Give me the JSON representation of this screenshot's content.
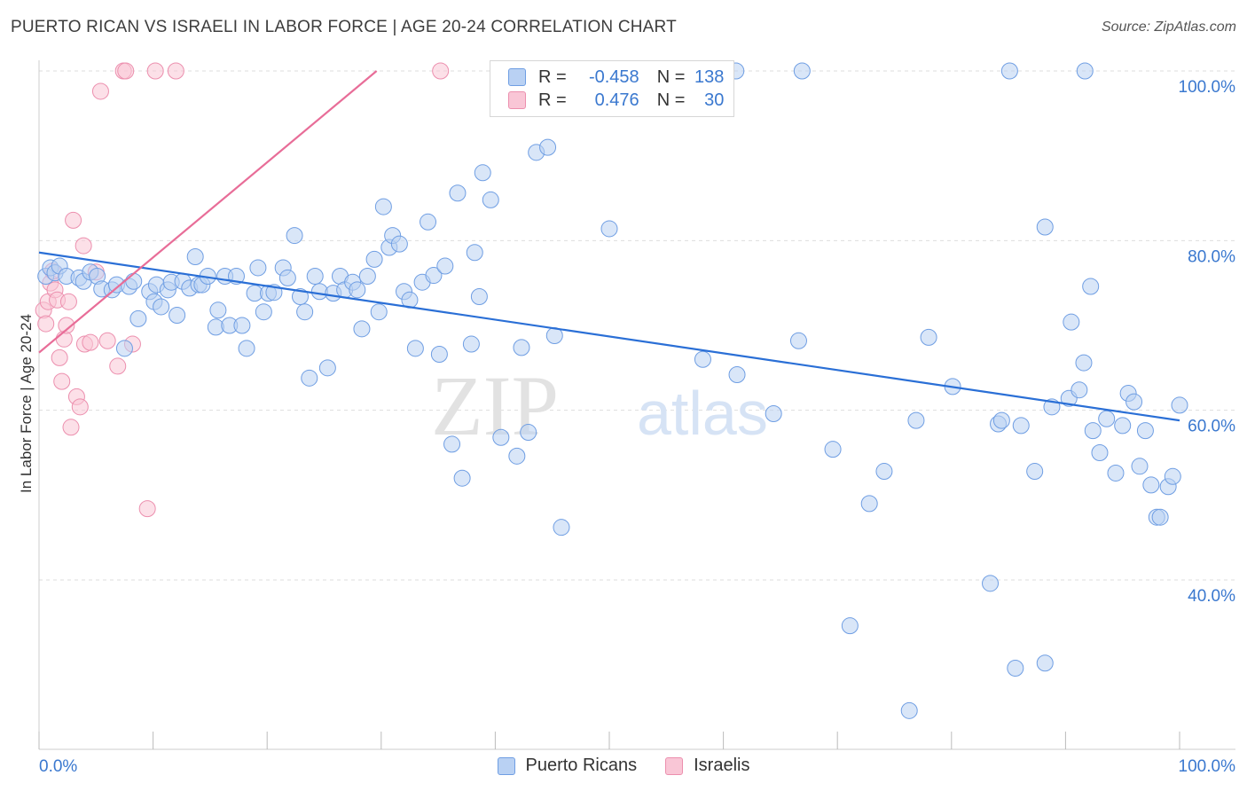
{
  "title": "PUERTO RICAN VS ISRAELI IN LABOR FORCE | AGE 20-24 CORRELATION CHART",
  "source": "Source: ZipAtlas.com",
  "watermark": {
    "zip": "ZIP",
    "atlas": "atlas"
  },
  "legend": {
    "rows": [
      {
        "r_label": "R =",
        "r_value": "-0.458",
        "n_label": "N =",
        "n_value": "138"
      },
      {
        "r_label": "R =",
        "r_value": "0.476",
        "n_label": "N =",
        "n_value": "30"
      }
    ]
  },
  "bottom_legend": [
    "Puerto Ricans",
    "Israelis"
  ],
  "colors": {
    "blue_fill": "#b9d1f3",
    "blue_stroke": "#6f9ee3",
    "blue_line": "#2a6fd6",
    "pink_fill": "#f9c6d6",
    "pink_stroke": "#ec8fae",
    "pink_line": "#e86d98",
    "tick_text": "#3a78cf",
    "grid": "#dddddd"
  },
  "chart_data": {
    "type": "scatter",
    "title": "PUERTO RICAN VS ISRAELI IN LABOR FORCE | AGE 20-24 CORRELATION CHART",
    "xlabel": "",
    "ylabel": "In Labor Force | Age 20-24",
    "xlim": [
      0,
      100
    ],
    "ylim": [
      20,
      102
    ],
    "x_tick_labels": [
      "0.0%",
      "100.0%"
    ],
    "y_ticks": [
      40,
      60,
      80,
      100
    ],
    "y_tick_labels": [
      "40.0%",
      "60.0%",
      "80.0%",
      "100.0%"
    ],
    "grid": true,
    "legend_position": "top-center",
    "series": [
      {
        "name": "Puerto Ricans",
        "color": "#6f9ee3",
        "trend": {
          "x": [
            0,
            100
          ],
          "y": [
            78.6,
            58.8
          ]
        },
        "points": [
          [
            0.6,
            75.8
          ],
          [
            1.0,
            76.8
          ],
          [
            1.4,
            76.2
          ],
          [
            1.8,
            77.0
          ],
          [
            2.4,
            75.8
          ],
          [
            3.5,
            75.6
          ],
          [
            3.9,
            75.2
          ],
          [
            4.5,
            76.3
          ],
          [
            5.1,
            75.8
          ],
          [
            5.5,
            74.3
          ],
          [
            6.4,
            74.2
          ],
          [
            6.8,
            74.8
          ],
          [
            7.5,
            67.3
          ],
          [
            7.9,
            74.6
          ],
          [
            8.3,
            75.2
          ],
          [
            8.7,
            70.8
          ],
          [
            9.7,
            74.0
          ],
          [
            10.1,
            72.8
          ],
          [
            10.3,
            74.8
          ],
          [
            10.7,
            72.2
          ],
          [
            11.3,
            74.2
          ],
          [
            11.6,
            75.1
          ],
          [
            12.1,
            71.2
          ],
          [
            12.6,
            75.2
          ],
          [
            13.2,
            74.4
          ],
          [
            13.7,
            78.1
          ],
          [
            14.0,
            74.8
          ],
          [
            14.3,
            74.8
          ],
          [
            14.8,
            75.8
          ],
          [
            15.5,
            69.8
          ],
          [
            15.7,
            71.8
          ],
          [
            16.3,
            75.8
          ],
          [
            16.7,
            70.0
          ],
          [
            17.3,
            75.8
          ],
          [
            17.8,
            70.0
          ],
          [
            18.2,
            67.3
          ],
          [
            18.9,
            73.8
          ],
          [
            19.2,
            76.8
          ],
          [
            19.7,
            71.6
          ],
          [
            20.1,
            73.8
          ],
          [
            20.6,
            73.9
          ],
          [
            21.4,
            76.8
          ],
          [
            21.8,
            75.6
          ],
          [
            22.4,
            80.6
          ],
          [
            22.9,
            73.4
          ],
          [
            23.3,
            71.6
          ],
          [
            23.7,
            63.8
          ],
          [
            24.2,
            75.8
          ],
          [
            24.6,
            74.0
          ],
          [
            25.3,
            65.0
          ],
          [
            25.8,
            73.8
          ],
          [
            26.4,
            75.8
          ],
          [
            26.8,
            74.2
          ],
          [
            27.5,
            75.1
          ],
          [
            27.9,
            74.2
          ],
          [
            28.3,
            69.6
          ],
          [
            28.8,
            75.8
          ],
          [
            29.4,
            77.8
          ],
          [
            29.8,
            71.6
          ],
          [
            30.2,
            84.0
          ],
          [
            30.7,
            79.2
          ],
          [
            31.0,
            80.6
          ],
          [
            31.6,
            79.6
          ],
          [
            32.0,
            74.0
          ],
          [
            32.5,
            73.0
          ],
          [
            33.0,
            67.3
          ],
          [
            33.6,
            75.1
          ],
          [
            34.1,
            82.2
          ],
          [
            34.6,
            75.9
          ],
          [
            35.1,
            66.6
          ],
          [
            35.6,
            77.0
          ],
          [
            36.2,
            56.0
          ],
          [
            36.7,
            85.6
          ],
          [
            37.1,
            52.0
          ],
          [
            37.9,
            67.8
          ],
          [
            38.2,
            78.6
          ],
          [
            38.6,
            73.4
          ],
          [
            38.9,
            88.0
          ],
          [
            39.6,
            84.8
          ],
          [
            40.5,
            56.8
          ],
          [
            41.2,
            100.0
          ],
          [
            41.9,
            54.6
          ],
          [
            42.3,
            67.4
          ],
          [
            42.9,
            57.4
          ],
          [
            43.6,
            90.4
          ],
          [
            44.6,
            91.0
          ],
          [
            45.2,
            68.8
          ],
          [
            45.8,
            46.2
          ],
          [
            46.5,
            100.0
          ],
          [
            49.3,
            100.0
          ],
          [
            50.0,
            81.4
          ],
          [
            55.7,
            100.0
          ],
          [
            58.2,
            66.0
          ],
          [
            61.1,
            100.0
          ],
          [
            61.2,
            64.2
          ],
          [
            64.4,
            59.6
          ],
          [
            66.6,
            68.2
          ],
          [
            66.9,
            100.0
          ],
          [
            69.6,
            55.4
          ],
          [
            71.1,
            34.6
          ],
          [
            72.8,
            49.0
          ],
          [
            74.1,
            52.8
          ],
          [
            76.3,
            24.6
          ],
          [
            76.9,
            58.8
          ],
          [
            78.0,
            68.6
          ],
          [
            80.1,
            62.8
          ],
          [
            83.4,
            39.6
          ],
          [
            84.1,
            58.4
          ],
          [
            84.4,
            58.8
          ],
          [
            85.1,
            100.0
          ],
          [
            85.6,
            29.6
          ],
          [
            86.1,
            58.2
          ],
          [
            87.3,
            52.8
          ],
          [
            88.2,
            30.2
          ],
          [
            88.2,
            81.6
          ],
          [
            88.8,
            60.4
          ],
          [
            90.3,
            61.4
          ],
          [
            90.5,
            70.4
          ],
          [
            91.2,
            62.4
          ],
          [
            91.6,
            65.6
          ],
          [
            91.7,
            100.0
          ],
          [
            92.2,
            74.6
          ],
          [
            92.4,
            57.6
          ],
          [
            93.0,
            55.0
          ],
          [
            93.6,
            59.0
          ],
          [
            94.4,
            52.6
          ],
          [
            95.0,
            58.2
          ],
          [
            95.5,
            62.0
          ],
          [
            96.0,
            61.0
          ],
          [
            96.5,
            53.4
          ],
          [
            97.0,
            57.6
          ],
          [
            97.5,
            51.2
          ],
          [
            98.0,
            47.4
          ],
          [
            98.3,
            47.4
          ],
          [
            99.0,
            51.0
          ],
          [
            99.4,
            52.2
          ],
          [
            100.0,
            60.6
          ]
        ]
      },
      {
        "name": "Israelis",
        "color": "#ec8fae",
        "trend": {
          "x": [
            0,
            29.6
          ],
          "y": [
            66.8,
            100.0
          ]
        },
        "points": [
          [
            0.4,
            71.8
          ],
          [
            0.6,
            70.2
          ],
          [
            0.8,
            72.8
          ],
          [
            1.0,
            75.0
          ],
          [
            1.2,
            76.4
          ],
          [
            1.4,
            74.2
          ],
          [
            1.6,
            73.0
          ],
          [
            1.8,
            66.2
          ],
          [
            2.0,
            63.4
          ],
          [
            2.2,
            68.4
          ],
          [
            2.4,
            70.0
          ],
          [
            2.6,
            72.8
          ],
          [
            2.8,
            58.0
          ],
          [
            3.0,
            82.4
          ],
          [
            3.3,
            61.6
          ],
          [
            3.6,
            60.4
          ],
          [
            3.9,
            79.4
          ],
          [
            4.0,
            67.8
          ],
          [
            4.5,
            68.0
          ],
          [
            5.0,
            76.3
          ],
          [
            5.4,
            97.6
          ],
          [
            6.0,
            68.2
          ],
          [
            6.9,
            65.2
          ],
          [
            7.4,
            100.0
          ],
          [
            7.6,
            100.0
          ],
          [
            8.2,
            67.8
          ],
          [
            9.5,
            48.4
          ],
          [
            10.2,
            100.0
          ],
          [
            12.0,
            100.0
          ],
          [
            35.2,
            100.0
          ]
        ]
      }
    ]
  }
}
